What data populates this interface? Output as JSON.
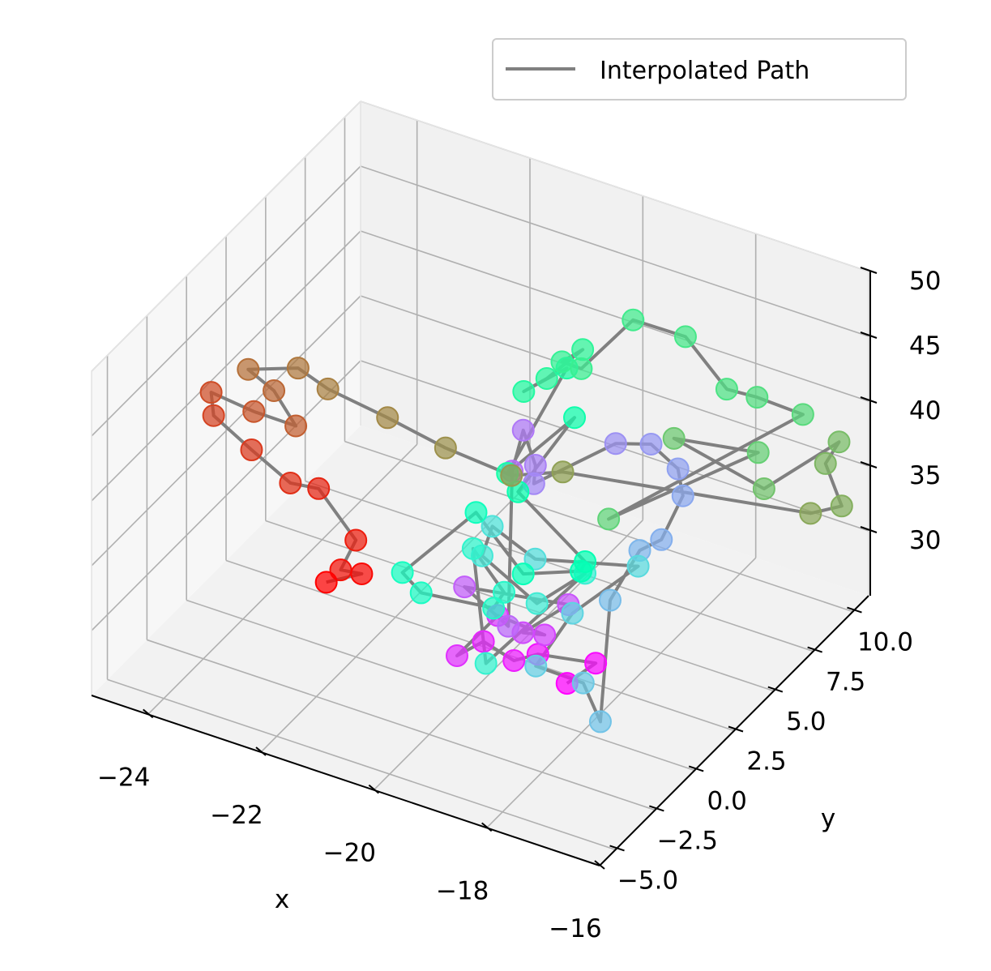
{
  "chart_data": {
    "type": "scatter",
    "title": "",
    "xlabel": "x",
    "ylabel": "y",
    "zlabel": "",
    "xlim": [
      -25,
      -16
    ],
    "ylim": [
      -6,
      11
    ],
    "zlim": [
      25,
      50
    ],
    "xticks": [
      "−24",
      "−22",
      "−20",
      "−18",
      "−16"
    ],
    "yticks": [
      "−5.0",
      "−2.5",
      "0.0",
      "2.5",
      "5.0",
      "7.5",
      "10.0"
    ],
    "zticks": [
      "30",
      "35",
      "40",
      "45",
      "50"
    ],
    "grid": true,
    "legend": {
      "placement": "top-right",
      "entries": [
        "Interpolated Path"
      ]
    },
    "colormap": "rainbow",
    "path_color": "#808080",
    "points": [
      [
        -18.4,
        0.5,
        27.6
      ],
      [
        -18.2,
        1.6,
        28.1
      ],
      [
        -19.0,
        0.8,
        28.6
      ],
      [
        -19.2,
        0.0,
        28.8
      ],
      [
        -19.6,
        -0.5,
        30.3
      ],
      [
        -19.9,
        -1.1,
        29.5
      ],
      [
        -19.6,
        0.4,
        31.2
      ],
      [
        -18.6,
        -0.2,
        31.9
      ],
      [
        -18.9,
        -0.5,
        32.0
      ],
      [
        -18.6,
        1.3,
        32.4
      ],
      [
        -20.3,
        0.8,
        31.9
      ],
      [
        -19.3,
        0.0,
        31.3
      ],
      [
        -20.1,
        3.1,
        38.3
      ],
      [
        -20.1,
        3.8,
        40.6
      ],
      [
        -19.8,
        3.5,
        38.7
      ],
      [
        -19.8,
        3.4,
        37.4
      ],
      [
        -18.8,
        5.0,
        40.0
      ],
      [
        -18.2,
        5.1,
        40.7
      ],
      [
        -17.5,
        4.3,
        40.8
      ],
      [
        -17.3,
        3.9,
        39.5
      ],
      [
        -17.4,
        2.9,
        37.2
      ],
      [
        -17.7,
        2.6,
        36.3
      ],
      [
        -18.0,
        1.8,
        33.0
      ],
      [
        -17.5,
        -0.6,
        27.3
      ],
      [
        -18.0,
        0.1,
        28.7
      ],
      [
        -18.7,
        -0.4,
        29.6
      ],
      [
        -18.5,
        1.2,
        32.0
      ],
      [
        -17.7,
        2.5,
        35.2
      ],
      [
        -19.3,
        1.7,
        34.4
      ],
      [
        -20.2,
        2.2,
        35.0
      ],
      [
        -20.1,
        1.2,
        34.1
      ],
      [
        -19.1,
        1.1,
        32.0
      ],
      [
        -18.5,
        2.0,
        34.1
      ],
      [
        -19.5,
        -0.7,
        29.0
      ],
      [
        -20.4,
        1.7,
        33.6
      ],
      [
        -19.6,
        0.8,
        32.5
      ],
      [
        -19.7,
        0.5,
        31.5
      ],
      [
        -20.9,
        0.2,
        31.3
      ],
      [
        -21.4,
        0.8,
        31.4
      ],
      [
        -20.6,
        2.6,
        35.0
      ],
      [
        -19.4,
        1.3,
        33.6
      ],
      [
        -18.6,
        2.1,
        34.0
      ],
      [
        -18.5,
        2.0,
        35.0
      ],
      [
        -19.8,
        2.4,
        38.0
      ],
      [
        -19.5,
        4.9,
        41.1
      ],
      [
        -20.1,
        2.8,
        38.5
      ],
      [
        -20.0,
        6.2,
        42.6
      ],
      [
        -20.4,
        4.9,
        41.8
      ],
      [
        -20.3,
        6.0,
        41.6
      ],
      [
        -20.0,
        7.2,
        42.8
      ],
      [
        -20.2,
        6.6,
        42.3
      ],
      [
        -19.8,
        6.4,
        42.6
      ],
      [
        -19.5,
        8.6,
        44.1
      ],
      [
        -18.6,
        8.7,
        44.0
      ],
      [
        -17.7,
        8.1,
        42.0
      ],
      [
        -17.5,
        9.3,
        40.2
      ],
      [
        -16.8,
        9.7,
        39.4
      ],
      [
        -18.7,
        4.2,
        35.3
      ],
      [
        -17.2,
        8.3,
        37.6
      ],
      [
        -18.3,
        6.9,
        38.8
      ],
      [
        -16.9,
        7.6,
        36.1
      ],
      [
        -16.3,
        10.2,
        37.4
      ],
      [
        -16.4,
        9.7,
        36.2
      ],
      [
        -16.0,
        9.3,
        34.0
      ],
      [
        -16.3,
        8.4,
        34.1
      ],
      [
        -19.4,
        3.8,
        38.4
      ],
      [
        -20.0,
        2.7,
        38.6
      ],
      [
        -21.0,
        2.1,
        40.0
      ],
      [
        -22.0,
        2.0,
        41.0
      ],
      [
        -23.0,
        1.8,
        42.0
      ],
      [
        -23.5,
        1.7,
        43.0
      ],
      [
        -24.3,
        1.4,
        42.1
      ],
      [
        -23.9,
        1.6,
        40.8
      ],
      [
        -23.4,
        1.2,
        39.3
      ],
      [
        -24.2,
        1.4,
        39.0
      ],
      [
        -24.9,
        1.2,
        39.7
      ],
      [
        -24.8,
        1.0,
        38.3
      ],
      [
        -24.1,
        0.9,
        36.8
      ],
      [
        -23.3,
        0.5,
        35.9
      ],
      [
        -22.8,
        0.5,
        36.2
      ],
      [
        -22.0,
        0.0,
        34.0
      ],
      [
        -22.1,
        -0.6,
        32.3
      ],
      [
        -21.7,
        -0.7,
        32.7
      ],
      [
        -22.3,
        -0.8,
        31.3
      ]
    ]
  }
}
